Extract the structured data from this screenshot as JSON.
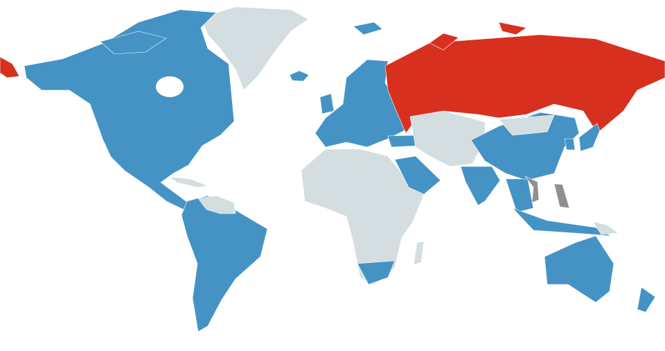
{
  "map": {
    "colors": {
      "blue": "#4593c5",
      "red": "#d8301f",
      "gray": "#d4dde0",
      "dark_gray": "#8f8f8f",
      "water": "#ffffff"
    }
  }
}
